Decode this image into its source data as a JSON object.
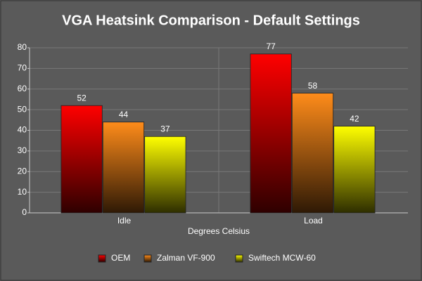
{
  "chart_data": {
    "type": "bar",
    "title": "VGA Heatsink Comparison - Default Settings",
    "xlabel": "Degrees Celsius",
    "categories": [
      "Idle",
      "Load"
    ],
    "series": [
      {
        "name": "OEM",
        "color": "#ff0000",
        "values": [
          52,
          77
        ]
      },
      {
        "name": "Zalman VF-900",
        "color": "#ff8c1a",
        "values": [
          44,
          58
        ]
      },
      {
        "name": "Swiftech MCW-60",
        "color": "#ffff00",
        "values": [
          37,
          42
        ]
      }
    ],
    "ylim": [
      0,
      80
    ],
    "yticks": [
      0,
      10,
      20,
      30,
      40,
      50,
      60,
      70,
      80
    ],
    "grid": true,
    "legend": "bottom"
  }
}
